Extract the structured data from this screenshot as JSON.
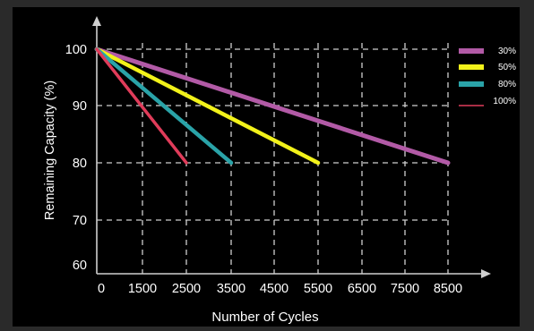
{
  "chart_data": {
    "type": "line",
    "title": "",
    "xlabel": "Number of Cycles",
    "ylabel": "Remaining Capacity (%)",
    "x_ticks": [
      0,
      1500,
      2500,
      3500,
      4500,
      5500,
      6500,
      7500,
      8500
    ],
    "y_ticks": [
      60,
      70,
      80,
      90,
      100
    ],
    "grid": true,
    "legend_position": "top-right",
    "series": [
      {
        "name": "30%",
        "color": "#b25aa6",
        "points": [
          [
            0,
            100
          ],
          [
            8500,
            80
          ]
        ]
      },
      {
        "name": "50%",
        "color": "#f2f21a",
        "points": [
          [
            0,
            100
          ],
          [
            5500,
            80
          ]
        ]
      },
      {
        "name": "80%",
        "color": "#2aa3a8",
        "points": [
          [
            0,
            100
          ],
          [
            3500,
            80
          ]
        ]
      },
      {
        "name": "100%",
        "color": "#e03c5a",
        "points": [
          [
            0,
            100
          ],
          [
            2500,
            80
          ]
        ]
      }
    ],
    "axis_color": "#cfcfcf",
    "grid_color": "#cfcfcf",
    "text_color": "#ffffff",
    "plot_background": "#000000",
    "page_background": "#2a2a2a"
  }
}
